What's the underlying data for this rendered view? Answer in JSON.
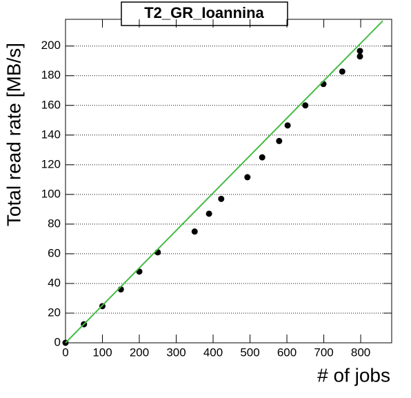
{
  "chart_data": {
    "type": "scatter",
    "title": "T2_GR_Ioannina",
    "x_label": "# of jobs",
    "y_label": "Total read rate [MB/s]",
    "xlim": [
      0,
      884
    ],
    "ylim": [
      0,
      218
    ],
    "xticks": [
      0,
      100,
      200,
      300,
      400,
      500,
      600,
      700,
      800
    ],
    "yticks": [
      0,
      20,
      40,
      60,
      80,
      100,
      120,
      140,
      160,
      180,
      200
    ],
    "grid": "y",
    "series": [
      {
        "mode": "points",
        "color": "#000000",
        "x": [
          0,
          50,
          100,
          150,
          200,
          250,
          350,
          389,
          422,
          493,
          533,
          579,
          602,
          650,
          699,
          750,
          798,
          798
        ],
        "values": [
          0,
          12.5,
          24.7,
          36,
          48,
          61,
          75,
          87,
          97,
          111.6,
          125,
          136,
          146.5,
          160,
          174.4,
          182.8,
          196.7,
          193
        ]
      },
      {
        "mode": "line",
        "color": "#44bb44",
        "x": [
          0,
          860
        ],
        "values": [
          0,
          217
        ]
      }
    ]
  }
}
